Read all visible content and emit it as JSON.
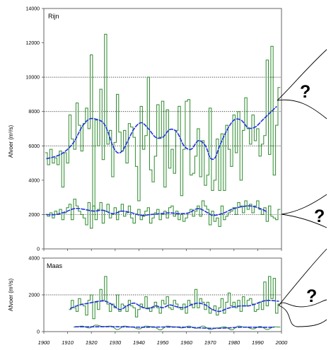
{
  "chart_data": [
    {
      "type": "line",
      "panel_label": "Rijn",
      "ylabel": "Afvoer (m³/s)",
      "xlim": [
        1900,
        2000
      ],
      "ylim": [
        0,
        14000
      ],
      "y_ticks": [
        0,
        2000,
        4000,
        6000,
        8000,
        10000,
        12000,
        14000
      ],
      "gridlines_dotted_y": [
        2000,
        6000,
        8000,
        10000
      ],
      "series": [
        {
          "role": "annual-maximum",
          "color": "#2e8b2e",
          "style": "step",
          "x": [
            1901,
            1902,
            1903,
            1904,
            1905,
            1906,
            1907,
            1908,
            1909,
            1910,
            1911,
            1912,
            1913,
            1914,
            1915,
            1916,
            1917,
            1918,
            1919,
            1920,
            1921,
            1922,
            1923,
            1924,
            1925,
            1926,
            1927,
            1928,
            1929,
            1930,
            1931,
            1932,
            1933,
            1934,
            1935,
            1936,
            1937,
            1938,
            1939,
            1940,
            1941,
            1942,
            1943,
            1944,
            1945,
            1946,
            1947,
            1948,
            1949,
            1950,
            1951,
            1952,
            1953,
            1954,
            1955,
            1956,
            1957,
            1958,
            1959,
            1960,
            1961,
            1962,
            1963,
            1964,
            1965,
            1966,
            1967,
            1968,
            1969,
            1970,
            1971,
            1972,
            1973,
            1974,
            1975,
            1976,
            1977,
            1978,
            1979,
            1980,
            1981,
            1982,
            1983,
            1984,
            1985,
            1986,
            1987,
            1988,
            1989,
            1990,
            1991,
            1992,
            1993,
            1994,
            1995,
            1996,
            1997,
            1998,
            1999
          ],
          "values": [
            5600,
            4900,
            5800,
            5000,
            5300,
            4900,
            5700,
            3600,
            5600,
            5000,
            7800,
            6400,
            5800,
            8500,
            7200,
            5700,
            7300,
            8200,
            7000,
            11300,
            2200,
            7500,
            6000,
            9300,
            5200,
            12500,
            6100,
            6900,
            4200,
            6200,
            9000,
            6800,
            5700,
            6900,
            5000,
            7300,
            7100,
            6500,
            4800,
            2800,
            8300,
            5800,
            6600,
            10000,
            4600,
            3900,
            5400,
            8400,
            6500,
            8600,
            3600,
            8100,
            4700,
            5800,
            4400,
            6900,
            8300,
            3100,
            5800,
            8600,
            8700,
            4300,
            4400,
            5400,
            7000,
            4200,
            6300,
            3700,
            4300,
            8200,
            3400,
            4000,
            6400,
            3400,
            6700,
            3400,
            7200,
            5800,
            4800,
            7800,
            5600,
            8000,
            4000,
            6900,
            8800,
            7000,
            6100,
            7800,
            6300,
            7000,
            5400,
            6100,
            6600,
            11000,
            5500,
            11800,
            4300,
            7200,
            9400
          ]
        },
        {
          "role": "maximum-smoothed",
          "color": "#2233dd",
          "style": "smooth",
          "x": [
            1901,
            1904,
            1907,
            1910,
            1913,
            1916,
            1919,
            1922,
            1925,
            1927,
            1929,
            1931,
            1933,
            1935,
            1938,
            1941,
            1944,
            1947,
            1950,
            1953,
            1956,
            1959,
            1962,
            1965,
            1968,
            1970,
            1972,
            1974,
            1977,
            1980,
            1983,
            1986,
            1989,
            1992,
            1995,
            1998
          ],
          "values": [
            5250,
            5350,
            5500,
            5800,
            6300,
            7100,
            7550,
            7550,
            7350,
            6800,
            6000,
            5600,
            5700,
            6200,
            7000,
            7350,
            7000,
            6500,
            6500,
            6950,
            6800,
            6000,
            5800,
            6300,
            6000,
            5300,
            5300,
            6000,
            6900,
            7500,
            7500,
            7050,
            7100,
            7500,
            7900,
            8300
          ]
        },
        {
          "role": "annual-minimum",
          "color": "#2e8b2e",
          "style": "step",
          "x": [
            1901,
            1902,
            1903,
            1904,
            1905,
            1906,
            1907,
            1908,
            1909,
            1910,
            1911,
            1912,
            1913,
            1914,
            1915,
            1916,
            1917,
            1918,
            1919,
            1920,
            1921,
            1922,
            1923,
            1924,
            1925,
            1926,
            1927,
            1928,
            1929,
            1930,
            1931,
            1932,
            1933,
            1934,
            1935,
            1936,
            1937,
            1938,
            1939,
            1940,
            1941,
            1942,
            1943,
            1944,
            1945,
            1946,
            1947,
            1948,
            1949,
            1950,
            1951,
            1952,
            1953,
            1954,
            1955,
            1956,
            1957,
            1958,
            1959,
            1960,
            1961,
            1962,
            1963,
            1964,
            1965,
            1966,
            1967,
            1968,
            1969,
            1970,
            1971,
            1972,
            1973,
            1974,
            1975,
            1976,
            1977,
            1978,
            1979,
            1980,
            1981,
            1982,
            1983,
            1984,
            1985,
            1986,
            1987,
            1988,
            1989,
            1990,
            1991,
            1992,
            1993,
            1994,
            1995,
            1996,
            1997,
            1998,
            1999
          ],
          "values": [
            2000,
            1900,
            2100,
            1800,
            2200,
            2000,
            2300,
            1700,
            2100,
            2400,
            2600,
            1700,
            2900,
            2500,
            2200,
            2000,
            1800,
            1400,
            2700,
            1200,
            2500,
            1700,
            2300,
            2700,
            1500,
            2200,
            2600,
            1800,
            2000,
            2400,
            1700,
            2200,
            2600,
            1900,
            2100,
            2500,
            1800,
            1500,
            2000,
            2300,
            1700,
            1900,
            2200,
            2400,
            1500,
            1800,
            2100,
            2300,
            1700,
            2000,
            2200,
            1800,
            2400,
            2500,
            1900,
            2200,
            1700,
            2000,
            1600,
            1800,
            2100,
            2300,
            1900,
            2200,
            2500,
            1900,
            2800,
            2500,
            2300,
            1400,
            2200,
            1600,
            1800,
            1300,
            2500,
            1700,
            1900,
            2100,
            2200,
            2400,
            2000,
            2700,
            2500,
            2100,
            2800,
            2300,
            2600,
            2100,
            2500,
            2800,
            2300,
            2000,
            2400,
            1600,
            2500,
            1900,
            1800,
            1700,
            2300
          ]
        },
        {
          "role": "minimum-smoothed",
          "color": "#2233dd",
          "style": "smooth",
          "x": [
            1901,
            1905,
            1909,
            1913,
            1917,
            1921,
            1925,
            1929,
            1933,
            1937,
            1941,
            1945,
            1949,
            1953,
            1957,
            1961,
            1965,
            1969,
            1971,
            1975,
            1979,
            1983,
            1987,
            1991,
            1994
          ],
          "values": [
            2000,
            2000,
            2150,
            2350,
            2300,
            2200,
            2250,
            2050,
            2200,
            2100,
            1950,
            2000,
            2050,
            2100,
            2050,
            2100,
            2350,
            2100,
            1950,
            2050,
            2300,
            2450,
            2500,
            2350,
            2150
          ]
        }
      ]
    },
    {
      "type": "line",
      "panel_label": "Maas",
      "ylabel": "Afvoer (m³/s)",
      "xlim": [
        1900,
        2000
      ],
      "ylim": [
        0,
        4000
      ],
      "y_ticks": [
        0,
        2000,
        4000
      ],
      "x_ticks": [
        1900,
        1910,
        1920,
        1930,
        1940,
        1950,
        1960,
        1970,
        1980,
        1990,
        2000
      ],
      "gridlines_dotted_y": [
        2000
      ],
      "series": [
        {
          "role": "annual-maximum",
          "color": "#2e8b2e",
          "style": "step",
          "x": [
            1911,
            1912,
            1913,
            1914,
            1915,
            1916,
            1917,
            1918,
            1919,
            1920,
            1921,
            1922,
            1923,
            1924,
            1925,
            1926,
            1927,
            1928,
            1929,
            1930,
            1931,
            1932,
            1933,
            1934,
            1935,
            1936,
            1937,
            1938,
            1939,
            1940,
            1941,
            1942,
            1943,
            1944,
            1945,
            1946,
            1947,
            1948,
            1949,
            1950,
            1951,
            1952,
            1953,
            1954,
            1955,
            1956,
            1957,
            1958,
            1959,
            1960,
            1961,
            1962,
            1963,
            1964,
            1965,
            1966,
            1967,
            1968,
            1969,
            1970,
            1971,
            1972,
            1973,
            1974,
            1975,
            1976,
            1977,
            1978,
            1979,
            1980,
            1981,
            1982,
            1983,
            1984,
            1985,
            1986,
            1987,
            1988,
            1989,
            1990,
            1991,
            1992,
            1993,
            1994,
            1995,
            1996,
            1997,
            1998,
            1999
          ],
          "values": [
            1200,
            1700,
            1300,
            1100,
            1800,
            1500,
            1400,
            900,
            1700,
            2000,
            700,
            1600,
            1200,
            2300,
            1700,
            3000,
            1500,
            1100,
            1500,
            1300,
            2000,
            1100,
            1500,
            1400,
            1100,
            1700,
            1400,
            1300,
            800,
            1200,
            1500,
            1300,
            1900,
            1300,
            1100,
            1300,
            1600,
            1300,
            1000,
            1700,
            1500,
            1900,
            1300,
            1200,
            1700,
            1500,
            1300,
            1200,
            1500,
            1000,
            1700,
            1500,
            1300,
            2300,
            1300,
            1800,
            1600,
            1200,
            1600,
            1000,
            1200,
            1400,
            900,
            1300,
            1800,
            1000,
            1600,
            2100,
            1400,
            1600,
            1300,
            1700,
            1100,
            1900,
            1400,
            1700,
            1800,
            1500,
            1100,
            1200,
            1600,
            1200,
            2700,
            1400,
            3000,
            1800,
            2900,
            1000,
            1500
          ]
        },
        {
          "role": "maximum-smoothed",
          "color": "#2233dd",
          "style": "smooth",
          "x": [
            1911,
            1915,
            1919,
            1923,
            1926,
            1929,
            1932,
            1935,
            1938,
            1941,
            1944,
            1947,
            1950,
            1953,
            1956,
            1959,
            1962,
            1965,
            1968,
            1971,
            1974,
            1977,
            1980,
            1983,
            1986,
            1989,
            1992,
            1995,
            1999
          ],
          "values": [
            1250,
            1450,
            1550,
            1650,
            1650,
            1450,
            1200,
            1400,
            1550,
            1350,
            1250,
            1400,
            1300,
            1450,
            1350,
            1300,
            1450,
            1550,
            1450,
            1200,
            1100,
            1250,
            1350,
            1400,
            1400,
            1500,
            1650,
            1700,
            1650
          ]
        },
        {
          "role": "annual-minimum",
          "color": "#2e8b2e",
          "style": "step",
          "x": [
            1913,
            1916,
            1919,
            1922,
            1925,
            1928,
            1931,
            1934,
            1937,
            1940,
            1943,
            1946,
            1949,
            1952,
            1955,
            1958,
            1961,
            1964,
            1967,
            1970,
            1973,
            1976,
            1979,
            1982,
            1985,
            1988,
            1991,
            1994,
            1997,
            1999
          ],
          "values": [
            250,
            300,
            200,
            350,
            280,
            300,
            120,
            300,
            250,
            150,
            300,
            270,
            100,
            300,
            260,
            200,
            300,
            180,
            300,
            120,
            200,
            260,
            100,
            300,
            240,
            150,
            280,
            120,
            260,
            250
          ]
        },
        {
          "role": "minimum-smoothed",
          "color": "#2233dd",
          "style": "smooth",
          "x": [
            1913,
            1920,
            1927,
            1933,
            1942,
            1950,
            1960,
            1970,
            1977,
            1983,
            1990,
            1997
          ],
          "values": [
            260,
            260,
            270,
            260,
            240,
            250,
            240,
            180,
            200,
            240,
            240,
            240
          ]
        }
      ]
    }
  ],
  "annotations": {
    "question_mark": "?"
  }
}
